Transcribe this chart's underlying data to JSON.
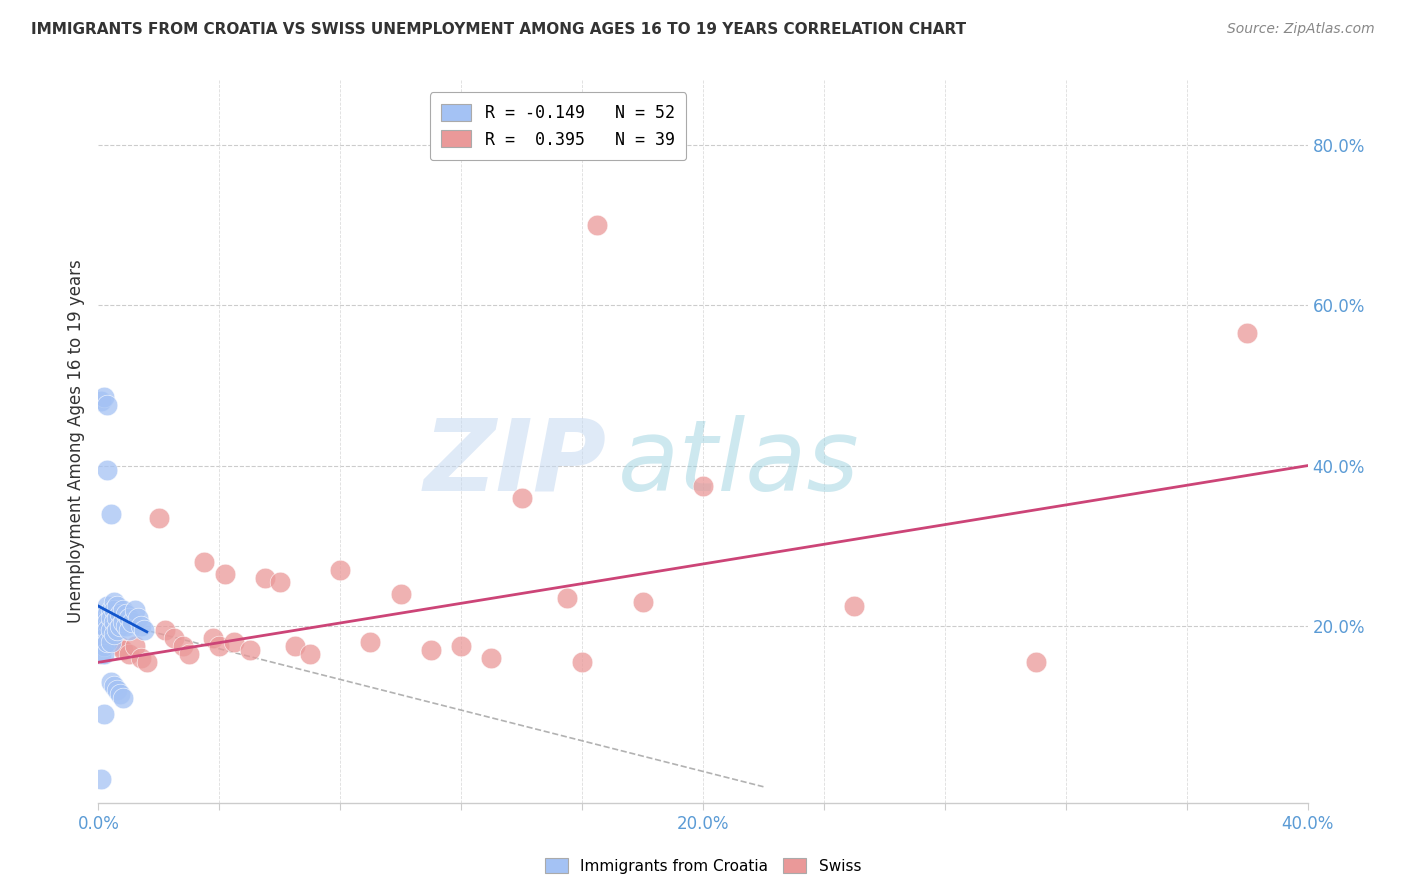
{
  "title": "IMMIGRANTS FROM CROATIA VS SWISS UNEMPLOYMENT AMONG AGES 16 TO 19 YEARS CORRELATION CHART",
  "source": "Source: ZipAtlas.com",
  "ylabel": "Unemployment Among Ages 16 to 19 years",
  "xlim": [
    0.0,
    0.4
  ],
  "ylim": [
    -0.02,
    0.88
  ],
  "xticks": [
    0.0,
    0.04,
    0.08,
    0.12,
    0.16,
    0.2,
    0.24,
    0.28,
    0.32,
    0.36,
    0.4
  ],
  "xtick_labels": [
    "0.0%",
    "",
    "",
    "",
    "",
    "20.0%",
    "",
    "",
    "",
    "",
    "40.0%"
  ],
  "yticks": [
    0.0,
    0.2,
    0.4,
    0.6,
    0.8
  ],
  "ytick_labels": [
    "",
    "20.0%",
    "40.0%",
    "60.0%",
    "80.0%"
  ],
  "legend_r1": "R = -0.149   N = 52",
  "legend_r2": "R =  0.395   N = 39",
  "blue_color": "#a4c2f4",
  "pink_color": "#ea9999",
  "blue_line_color": "#1155cc",
  "pink_line_color": "#cc4477",
  "dashed_line_color": "#aaaaaa",
  "blue_x": [
    0.001,
    0.001,
    0.001,
    0.001,
    0.001,
    0.002,
    0.002,
    0.002,
    0.002,
    0.002,
    0.002,
    0.003,
    0.003,
    0.003,
    0.003,
    0.003,
    0.004,
    0.004,
    0.004,
    0.004,
    0.005,
    0.005,
    0.005,
    0.005,
    0.006,
    0.006,
    0.006,
    0.007,
    0.007,
    0.008,
    0.008,
    0.009,
    0.009,
    0.01,
    0.01,
    0.011,
    0.012,
    0.013,
    0.014,
    0.015,
    0.001,
    0.002,
    0.003,
    0.004,
    0.005,
    0.006,
    0.007,
    0.008,
    0.003,
    0.002,
    0.001,
    0.004
  ],
  "blue_y": [
    0.2,
    0.195,
    0.185,
    0.175,
    0.165,
    0.215,
    0.205,
    0.195,
    0.185,
    0.175,
    0.165,
    0.225,
    0.215,
    0.205,
    0.195,
    0.18,
    0.22,
    0.21,
    0.195,
    0.18,
    0.23,
    0.22,
    0.205,
    0.19,
    0.225,
    0.21,
    0.195,
    0.215,
    0.2,
    0.22,
    0.205,
    0.215,
    0.2,
    0.21,
    0.195,
    0.205,
    0.22,
    0.21,
    0.2,
    0.195,
    0.48,
    0.485,
    0.475,
    0.13,
    0.125,
    0.12,
    0.115,
    0.11,
    0.395,
    0.09,
    0.01,
    0.34
  ],
  "pink_x": [
    0.002,
    0.003,
    0.005,
    0.007,
    0.008,
    0.01,
    0.012,
    0.014,
    0.016,
    0.02,
    0.022,
    0.025,
    0.028,
    0.03,
    0.035,
    0.038,
    0.04,
    0.042,
    0.045,
    0.05,
    0.055,
    0.06,
    0.065,
    0.07,
    0.08,
    0.09,
    0.1,
    0.11,
    0.12,
    0.13,
    0.14,
    0.155,
    0.16,
    0.165,
    0.18,
    0.2,
    0.25,
    0.31,
    0.38
  ],
  "pink_y": [
    0.185,
    0.195,
    0.18,
    0.175,
    0.17,
    0.165,
    0.175,
    0.16,
    0.155,
    0.335,
    0.195,
    0.185,
    0.175,
    0.165,
    0.28,
    0.185,
    0.175,
    0.265,
    0.18,
    0.17,
    0.26,
    0.255,
    0.175,
    0.165,
    0.27,
    0.18,
    0.24,
    0.17,
    0.175,
    0.16,
    0.36,
    0.235,
    0.155,
    0.7,
    0.23,
    0.375,
    0.225,
    0.155,
    0.565
  ],
  "figsize": [
    14.06,
    8.92
  ],
  "dpi": 100
}
